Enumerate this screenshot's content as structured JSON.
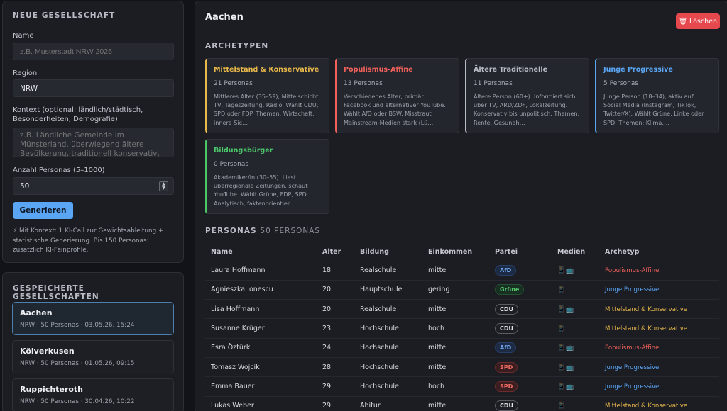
{
  "new_society": {
    "title": "NEUE GESELLSCHAFT",
    "name_label": "Name",
    "name_placeholder": "z.B. Musterstadt NRW 2025",
    "region_label": "Region",
    "region_value": "NRW",
    "context_label": "Kontext (optional: ländlich/städtisch, Besonderheiten, Demografie)",
    "context_placeholder": "z.B. Ländliche Gemeinde im Münsterland, überwiegend ältere Bevölkerung, traditionell konservativ, wenig Industrie.",
    "count_label": "Anzahl Personas (5–1000)",
    "count_value": "50",
    "generate_label": "Generieren",
    "hint": "⚡ Mit Kontext: 1 KI-Call zur Gewichtsableitung + statistische Generierung. Bis 150 Personas: zusätzlich KI-Feinprofile."
  },
  "saved": {
    "title": "GESPEICHERTE GESELLSCHAFTEN",
    "items": [
      {
        "name": "Aachen",
        "meta": "NRW · 50 Personas · 03.05.26, 15:24"
      },
      {
        "name": "Kölverkusen",
        "meta": "NRW · 50 Personas · 01.05.26, 09:15"
      },
      {
        "name": "Ruppichteroth",
        "meta": "NRW · 50 Personas · 30.04.26, 10:22"
      }
    ]
  },
  "main": {
    "title": "Aachen",
    "delete_label": "Löschen",
    "archetypes_title": "ARCHETYPEN",
    "archetypes": [
      {
        "name": "Mittelstand & Konservative",
        "count": "21 Personas",
        "color": "#e8b84a",
        "desc": "Mittleres Alter (35–59), Mittelschicht. TV, Tageszeitung, Radio. Wählt CDU, SPD oder FDP. Themen: Wirtschaft, innere Sic…"
      },
      {
        "name": "Populismus-Affine",
        "count": "13 Personas",
        "color": "#f0605a",
        "desc": "Verschiedenes Alter, primär Facebook und alternativer YouTube. Wählt AfD oder BSW. Misstraut Mainstream-Medien stark (Lü…"
      },
      {
        "name": "Ältere Traditionelle",
        "count": "11 Personas",
        "color": "#b9bcc5",
        "desc": "Ältere Person (60+). Informiert sich über TV, ARD/ZDF, Lokalzeitung. Konservativ bis unpolitisch. Themen: Rente, Gesundh…"
      },
      {
        "name": "Junge Progressive",
        "count": "5 Personas",
        "color": "#5aa6f5",
        "desc": "Junge Person (18–34), aktiv auf Social Media (Instagram, TikTok, Twitter/X). Wählt Grüne, Linke oder SPD. Themen: Klima,…"
      },
      {
        "name": "Bildungsbürger",
        "count": "0 Personas",
        "color": "#4cc76a",
        "desc": "Akademiker/in (30–55). Liest überregionale Zeitungen, schaut YouTube. Wählt Grüne, FDP, SPD. Analytisch, faktenorientier…"
      }
    ],
    "personas_title": "PERSONAS",
    "personas_count": "50 PERSONAS",
    "columns": [
      "Name",
      "Alter",
      "Bildung",
      "Einkommen",
      "Partei",
      "Medien",
      "Archetyp"
    ],
    "rows": [
      {
        "name": "Laura Hoffmann",
        "age": "18",
        "edu": "Realschule",
        "income": "mittel",
        "party": "AfD",
        "media": "📱📺",
        "arch": "Populismus-Affine"
      },
      {
        "name": "Agnieszka Ionescu",
        "age": "20",
        "edu": "Hauptschule",
        "income": "gering",
        "party": "Grüne",
        "media": "📱",
        "arch": "Junge Progressive"
      },
      {
        "name": "Lisa Hoffmann",
        "age": "20",
        "edu": "Realschule",
        "income": "mittel",
        "party": "CDU",
        "media": "📱📺",
        "arch": "Mittelstand & Konservative"
      },
      {
        "name": "Susanne Krüger",
        "age": "23",
        "edu": "Hochschule",
        "income": "hoch",
        "party": "CDU",
        "media": "📱",
        "arch": "Mittelstand & Konservative"
      },
      {
        "name": "Esra Öztürk",
        "age": "24",
        "edu": "Hochschule",
        "income": "mittel",
        "party": "AfD",
        "media": "📱📺",
        "arch": "Populismus-Affine"
      },
      {
        "name": "Tomasz Wojcik",
        "age": "28",
        "edu": "Hochschule",
        "income": "mittel",
        "party": "SPD",
        "media": "📱📺",
        "arch": "Junge Progressive"
      },
      {
        "name": "Emma Bauer",
        "age": "29",
        "edu": "Hochschule",
        "income": "hoch",
        "party": "SPD",
        "media": "📱📺",
        "arch": "Junge Progressive"
      },
      {
        "name": "Lukas Weber",
        "age": "29",
        "edu": "Abitur",
        "income": "mittel",
        "party": "CDU",
        "media": "📱",
        "arch": "Mittelstand & Konservative"
      }
    ],
    "party_colors": {
      "AfD": {
        "fg": "#6fa8f0",
        "bg": "#1c2a44",
        "border": "#27406a"
      },
      "Grüne": {
        "fg": "#55c56c",
        "bg": "#183022",
        "border": "#24512f"
      },
      "CDU": {
        "fg": "#e6e7ea",
        "bg": "#1d1f24",
        "border": "#5a5d64"
      },
      "SPD": {
        "fg": "#f06b63",
        "bg": "#3a1d1f",
        "border": "#6a2c2c"
      }
    },
    "arch_colors": {
      "Populismus-Affine": "#f0605a",
      "Junge Progressive": "#5aa6f5",
      "Mittelstand & Konservative": "#e8b84a"
    }
  }
}
